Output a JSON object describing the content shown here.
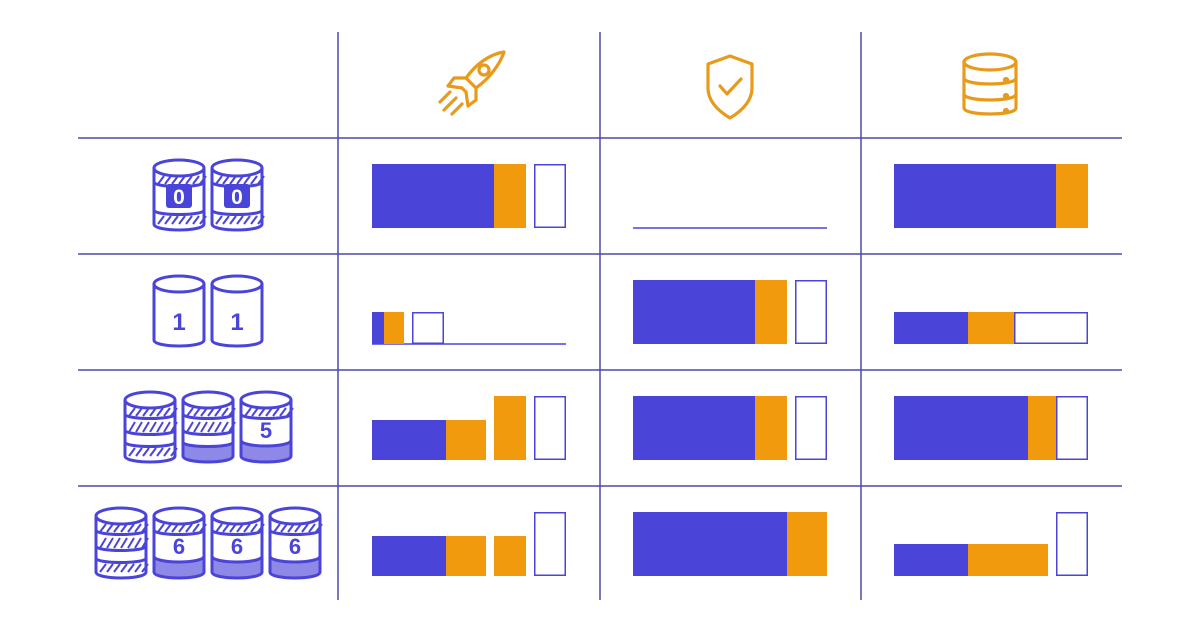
{
  "colors": {
    "grid": "#4f4aa6",
    "blue": "#4b44d9",
    "orange": "#f29a0d",
    "outline": "#4b44d9",
    "icon_orange": "#e89a1a"
  },
  "header_icons": [
    "rocket-icon",
    "shield-check-icon",
    "database-stack-icon"
  ],
  "rows": [
    {
      "name": "raid-0",
      "disks": [
        {
          "label": "0",
          "style": "striped"
        },
        {
          "label": "0",
          "style": "striped"
        }
      ]
    },
    {
      "name": "raid-1",
      "disks": [
        {
          "label": "1",
          "style": "plain"
        },
        {
          "label": "1",
          "style": "plain"
        }
      ]
    },
    {
      "name": "raid-5",
      "disks": [
        {
          "label": "",
          "style": "full"
        },
        {
          "label": "",
          "style": "full-shaded"
        },
        {
          "label": "5",
          "style": "labeled-shaded"
        }
      ]
    },
    {
      "name": "raid-6",
      "disks": [
        {
          "label": "",
          "style": "full"
        },
        {
          "label": "6",
          "style": "labeled-shaded"
        },
        {
          "label": "6",
          "style": "labeled-shaded"
        },
        {
          "label": "6",
          "style": "labeled-shaded"
        }
      ]
    }
  ],
  "cells": [
    [
      {
        "segments": [
          {
            "t": "blue",
            "w": 122
          },
          {
            "t": "orange",
            "w": 32
          },
          {
            "t": "gap",
            "w": 8
          },
          {
            "t": "outline",
            "w": 32
          }
        ],
        "h": [
          64,
          64,
          0,
          64
        ],
        "baseline": false
      },
      {
        "segments": [],
        "baseline": true
      },
      {
        "segments": [
          {
            "t": "blue",
            "w": 162
          },
          {
            "t": "orange",
            "w": 32
          }
        ],
        "h": [
          64,
          64
        ],
        "baseline": false
      }
    ],
    [
      {
        "segments": [
          {
            "t": "blue",
            "w": 12
          },
          {
            "t": "orange",
            "w": 20
          },
          {
            "t": "gap",
            "w": 8
          },
          {
            "t": "outline",
            "w": 32
          }
        ],
        "h": [
          32,
          32,
          0,
          32
        ],
        "baseline": true
      },
      {
        "segments": [
          {
            "t": "blue",
            "w": 122
          },
          {
            "t": "orange",
            "w": 32
          },
          {
            "t": "gap",
            "w": 8
          },
          {
            "t": "outline",
            "w": 32
          }
        ],
        "h": [
          64,
          64,
          0,
          64
        ],
        "baseline": false
      },
      {
        "segments": [
          {
            "t": "blue",
            "w": 74
          },
          {
            "t": "orange",
            "w": 46
          },
          {
            "t": "outline",
            "w": 74
          }
        ],
        "h": [
          32,
          32,
          32
        ],
        "baseline": false
      }
    ],
    [
      {
        "segments": [
          {
            "t": "blue",
            "w": 74
          },
          {
            "t": "orange",
            "w": 40
          },
          {
            "t": "gap",
            "w": 8
          },
          {
            "t": "orange",
            "w": 32
          },
          {
            "t": "gap",
            "w": 8
          },
          {
            "t": "outline",
            "w": 32
          }
        ],
        "h": [
          40,
          40,
          0,
          64,
          0,
          64
        ],
        "baseline": false
      },
      {
        "segments": [
          {
            "t": "blue",
            "w": 122
          },
          {
            "t": "orange",
            "w": 32
          },
          {
            "t": "gap",
            "w": 8
          },
          {
            "t": "outline",
            "w": 32
          }
        ],
        "h": [
          64,
          64,
          0,
          64
        ],
        "baseline": false
      },
      {
        "segments": [
          {
            "t": "blue",
            "w": 134
          },
          {
            "t": "orange",
            "w": 28
          },
          {
            "t": "outline",
            "w": 32
          }
        ],
        "h": [
          64,
          64,
          64
        ],
        "baseline": false
      }
    ],
    [
      {
        "segments": [
          {
            "t": "blue",
            "w": 74
          },
          {
            "t": "orange",
            "w": 40
          },
          {
            "t": "gap",
            "w": 8
          },
          {
            "t": "orange",
            "w": 32
          },
          {
            "t": "gap",
            "w": 8
          },
          {
            "t": "outline",
            "w": 32
          }
        ],
        "h": [
          40,
          40,
          0,
          40,
          0,
          64
        ],
        "baseline": false
      },
      {
        "segments": [
          {
            "t": "blue",
            "w": 154
          },
          {
            "t": "orange",
            "w": 40
          }
        ],
        "h": [
          64,
          64
        ],
        "baseline": false
      },
      {
        "segments": [
          {
            "t": "blue",
            "w": 74
          },
          {
            "t": "orange",
            "w": 80
          },
          {
            "t": "gap",
            "w": 8
          },
          {
            "t": "outline",
            "w": 32
          }
        ],
        "h": [
          32,
          32,
          0,
          64
        ],
        "baseline": false
      }
    ]
  ]
}
